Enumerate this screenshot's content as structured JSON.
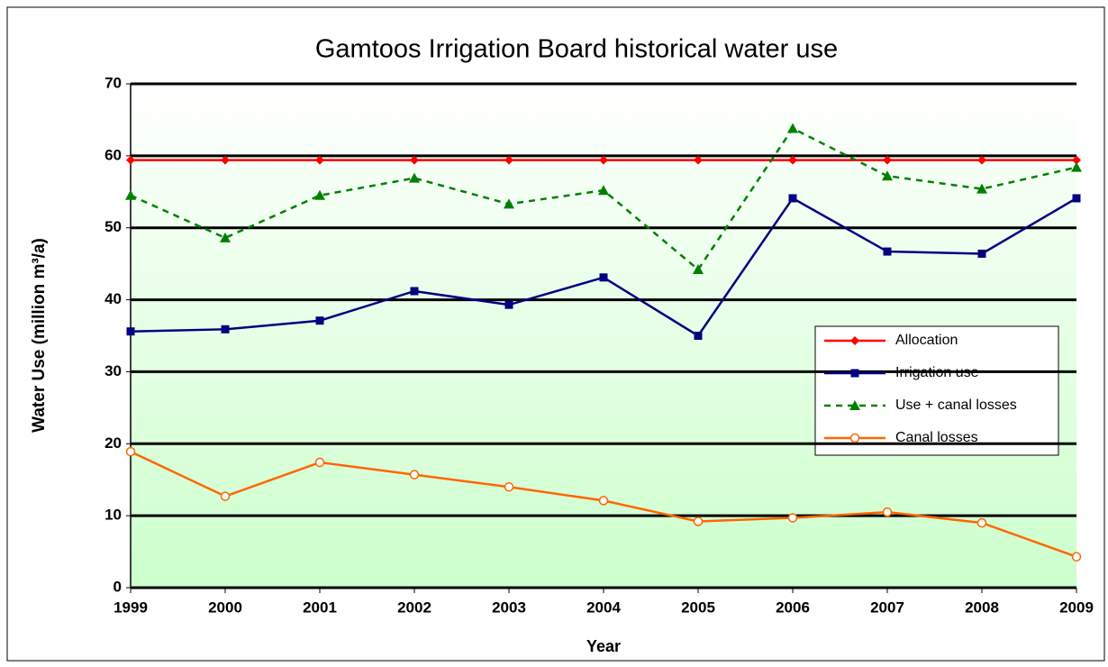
{
  "chart_data": {
    "type": "line",
    "title": "Gamtoos Irrigation Board historical water use",
    "x_label": "Year",
    "y_label": "Water Use (million m³/a)",
    "categories": [
      "1999",
      "2000",
      "2001",
      "2002",
      "2003",
      "2004",
      "2005",
      "2006",
      "2007",
      "2008",
      "2009"
    ],
    "series": [
      {
        "name": "Allocation",
        "color": "#ff0000",
        "marker": "diamond",
        "dashed": false,
        "values": [
          59.4,
          59.4,
          59.4,
          59.4,
          59.4,
          59.4,
          59.4,
          59.4,
          59.4,
          59.4,
          59.4
        ]
      },
      {
        "name": "Irrigation use",
        "color": "#000080",
        "marker": "square",
        "dashed": false,
        "values": [
          35.6,
          35.9,
          37.1,
          41.2,
          39.3,
          43.1,
          35.0,
          54.1,
          46.7,
          46.4,
          54.1
        ]
      },
      {
        "name": "Use + canal losses",
        "color": "#008000",
        "marker": "triangle",
        "dashed": true,
        "values": [
          54.5,
          48.6,
          54.5,
          56.9,
          53.3,
          55.2,
          44.2,
          63.8,
          57.2,
          55.4,
          58.4
        ]
      },
      {
        "name": "Canal losses",
        "color": "#ff6600",
        "marker": "circle",
        "dashed": false,
        "values": [
          18.9,
          12.7,
          17.4,
          15.7,
          14.0,
          12.1,
          9.2,
          9.7,
          10.5,
          9.0,
          4.3
        ]
      }
    ],
    "ylim": [
      0,
      70
    ],
    "yticks": [
      0,
      10,
      20,
      30,
      40,
      50,
      60,
      70
    ],
    "grid": true,
    "legend": "right"
  }
}
